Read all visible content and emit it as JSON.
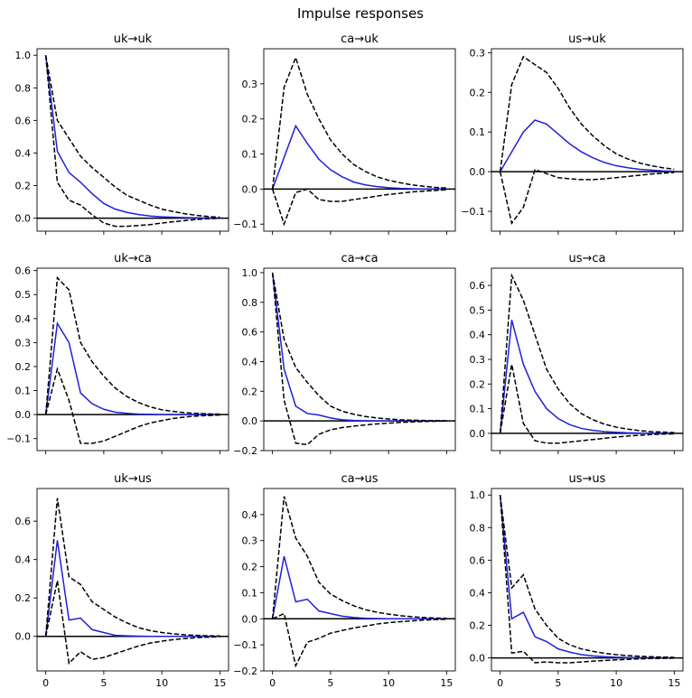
{
  "figure": {
    "title": "Impulse responses"
  },
  "colors": {
    "response": "#1f1fdd",
    "band": "#000000",
    "axis": "#000000",
    "zero": "#000000"
  },
  "chart_data": [
    {
      "type": "line",
      "title": "uk→uk",
      "x": [
        0,
        1,
        2,
        3,
        4,
        5,
        6,
        7,
        8,
        9,
        10,
        11,
        12,
        13,
        14,
        15
      ],
      "ylim": [
        -0.08,
        1.04
      ],
      "yticks": [
        0.0,
        0.2,
        0.4,
        0.6,
        0.8,
        1.0
      ],
      "ytick_labels": [
        "0.0",
        "0.2",
        "0.4",
        "0.6",
        "0.8",
        "1.0"
      ],
      "series": [
        {
          "role": "response",
          "values": [
            1.0,
            0.41,
            0.28,
            0.22,
            0.15,
            0.09,
            0.055,
            0.035,
            0.022,
            0.013,
            0.008,
            0.005,
            0.003,
            0.002,
            0.001,
            0.0
          ]
        },
        {
          "role": "upper",
          "values": [
            1.0,
            0.6,
            0.49,
            0.38,
            0.31,
            0.25,
            0.19,
            0.14,
            0.11,
            0.08,
            0.055,
            0.04,
            0.027,
            0.017,
            0.01,
            0.005
          ]
        },
        {
          "role": "lower",
          "values": [
            1.0,
            0.22,
            0.11,
            0.08,
            0.02,
            -0.03,
            -0.05,
            -0.05,
            -0.045,
            -0.04,
            -0.03,
            -0.022,
            -0.015,
            -0.008,
            -0.004,
            -0.001
          ]
        }
      ]
    },
    {
      "type": "line",
      "title": "ca→uk",
      "x": [
        0,
        1,
        2,
        3,
        4,
        5,
        6,
        7,
        8,
        9,
        10,
        11,
        12,
        13,
        14,
        15
      ],
      "ylim": [
        -0.12,
        0.4
      ],
      "yticks": [
        -0.1,
        0.0,
        0.1,
        0.2,
        0.3
      ],
      "ytick_labels": [
        "−0.1",
        "0.0",
        "0.1",
        "0.2",
        "0.3"
      ],
      "series": [
        {
          "role": "response",
          "values": [
            0.0,
            0.09,
            0.18,
            0.13,
            0.085,
            0.055,
            0.035,
            0.02,
            0.012,
            0.007,
            0.004,
            0.002,
            0.001,
            0.0,
            0.0,
            0.0
          ]
        },
        {
          "role": "upper",
          "values": [
            0.0,
            0.29,
            0.375,
            0.27,
            0.2,
            0.14,
            0.1,
            0.07,
            0.05,
            0.035,
            0.025,
            0.018,
            0.012,
            0.008,
            0.005,
            0.003
          ]
        },
        {
          "role": "lower",
          "values": [
            0.0,
            -0.1,
            -0.01,
            0.0,
            -0.03,
            -0.035,
            -0.035,
            -0.03,
            -0.025,
            -0.02,
            -0.015,
            -0.012,
            -0.008,
            -0.006,
            -0.004,
            -0.002
          ]
        }
      ]
    },
    {
      "type": "line",
      "title": "us→uk",
      "x": [
        0,
        1,
        2,
        3,
        4,
        5,
        6,
        7,
        8,
        9,
        10,
        11,
        12,
        13,
        14,
        15
      ],
      "ylim": [
        -0.15,
        0.31
      ],
      "yticks": [
        -0.1,
        0.0,
        0.1,
        0.2,
        0.3
      ],
      "ytick_labels": [
        "−0.1",
        "0.0",
        "0.1",
        "0.2",
        "0.3"
      ],
      "series": [
        {
          "role": "response",
          "values": [
            0.0,
            0.05,
            0.1,
            0.13,
            0.12,
            0.095,
            0.07,
            0.05,
            0.035,
            0.023,
            0.015,
            0.01,
            0.006,
            0.004,
            0.002,
            0.001
          ]
        },
        {
          "role": "upper",
          "values": [
            0.0,
            0.22,
            0.29,
            0.27,
            0.25,
            0.21,
            0.16,
            0.12,
            0.09,
            0.065,
            0.045,
            0.032,
            0.022,
            0.015,
            0.01,
            0.006
          ]
        },
        {
          "role": "lower",
          "values": [
            0.0,
            -0.13,
            -0.09,
            0.005,
            -0.005,
            -0.015,
            -0.018,
            -0.02,
            -0.02,
            -0.018,
            -0.015,
            -0.012,
            -0.009,
            -0.006,
            -0.004,
            -0.002
          ]
        }
      ]
    },
    {
      "type": "line",
      "title": "uk→ca",
      "x": [
        0,
        1,
        2,
        3,
        4,
        5,
        6,
        7,
        8,
        9,
        10,
        11,
        12,
        13,
        14,
        15
      ],
      "ylim": [
        -0.15,
        0.61
      ],
      "yticks": [
        -0.1,
        0.0,
        0.1,
        0.2,
        0.3,
        0.4,
        0.5,
        0.6
      ],
      "ytick_labels": [
        "−0.1",
        "0.0",
        "0.1",
        "0.2",
        "0.3",
        "0.4",
        "0.5",
        "0.6"
      ],
      "series": [
        {
          "role": "response",
          "values": [
            0.0,
            0.38,
            0.3,
            0.09,
            0.045,
            0.022,
            0.01,
            0.005,
            0.002,
            0.001,
            0.0,
            0.0,
            0.0,
            0.0,
            0.0,
            0.0
          ]
        },
        {
          "role": "upper",
          "values": [
            0.0,
            0.57,
            0.52,
            0.3,
            0.22,
            0.16,
            0.11,
            0.075,
            0.05,
            0.032,
            0.02,
            0.013,
            0.008,
            0.005,
            0.003,
            0.002
          ]
        },
        {
          "role": "lower",
          "values": [
            0.0,
            0.19,
            0.06,
            -0.12,
            -0.12,
            -0.11,
            -0.09,
            -0.07,
            -0.05,
            -0.035,
            -0.025,
            -0.016,
            -0.01,
            -0.006,
            -0.004,
            -0.002
          ]
        }
      ]
    },
    {
      "type": "line",
      "title": "ca→ca",
      "x": [
        0,
        1,
        2,
        3,
        4,
        5,
        6,
        7,
        8,
        9,
        10,
        11,
        12,
        13,
        14,
        15
      ],
      "ylim": [
        -0.2,
        1.03
      ],
      "yticks": [
        -0.2,
        0.0,
        0.2,
        0.4,
        0.6,
        0.8,
        1.0
      ],
      "ytick_labels": [
        "−0.2",
        "0.0",
        "0.2",
        "0.4",
        "0.6",
        "0.8",
        "1.0"
      ],
      "series": [
        {
          "role": "response",
          "values": [
            1.0,
            0.35,
            0.1,
            0.05,
            0.04,
            0.02,
            0.008,
            0.003,
            0.001,
            0.0,
            0.0,
            0.0,
            0.0,
            0.0,
            0.0,
            0.0
          ]
        },
        {
          "role": "upper",
          "values": [
            1.0,
            0.55,
            0.36,
            0.26,
            0.17,
            0.1,
            0.065,
            0.045,
            0.03,
            0.02,
            0.013,
            0.008,
            0.005,
            0.003,
            0.002,
            0.001
          ]
        },
        {
          "role": "lower",
          "values": [
            1.0,
            0.14,
            -0.15,
            -0.16,
            -0.09,
            -0.06,
            -0.045,
            -0.035,
            -0.027,
            -0.02,
            -0.015,
            -0.01,
            -0.007,
            -0.004,
            -0.002,
            -0.001
          ]
        }
      ]
    },
    {
      "type": "line",
      "title": "us→ca",
      "x": [
        0,
        1,
        2,
        3,
        4,
        5,
        6,
        7,
        8,
        9,
        10,
        11,
        12,
        13,
        14,
        15
      ],
      "ylim": [
        -0.07,
        0.67
      ],
      "yticks": [
        0.0,
        0.1,
        0.2,
        0.3,
        0.4,
        0.5,
        0.6
      ],
      "ytick_labels": [
        "0.0",
        "0.1",
        "0.2",
        "0.3",
        "0.4",
        "0.5",
        "0.6"
      ],
      "series": [
        {
          "role": "response",
          "values": [
            0.0,
            0.46,
            0.28,
            0.17,
            0.1,
            0.06,
            0.035,
            0.02,
            0.012,
            0.007,
            0.004,
            0.002,
            0.001,
            0.0,
            0.0,
            0.0
          ]
        },
        {
          "role": "upper",
          "values": [
            0.0,
            0.64,
            0.54,
            0.4,
            0.26,
            0.18,
            0.12,
            0.08,
            0.055,
            0.037,
            0.025,
            0.017,
            0.011,
            0.007,
            0.005,
            0.003
          ]
        },
        {
          "role": "lower",
          "values": [
            0.0,
            0.28,
            0.04,
            -0.03,
            -0.04,
            -0.04,
            -0.035,
            -0.03,
            -0.025,
            -0.02,
            -0.015,
            -0.011,
            -0.008,
            -0.005,
            -0.003,
            -0.002
          ]
        }
      ]
    },
    {
      "type": "line",
      "title": "uk→us",
      "x": [
        0,
        1,
        2,
        3,
        4,
        5,
        6,
        7,
        8,
        9,
        10,
        11,
        12,
        13,
        14,
        15
      ],
      "ylim": [
        -0.18,
        0.77
      ],
      "yticks": [
        0.0,
        0.2,
        0.4,
        0.6
      ],
      "ytick_labels": [
        "0.0",
        "0.2",
        "0.4",
        "0.6"
      ],
      "series": [
        {
          "role": "response",
          "values": [
            0.0,
            0.5,
            0.085,
            0.095,
            0.035,
            0.02,
            0.005,
            0.003,
            0.001,
            0.0,
            0.0,
            0.0,
            0.0,
            0.0,
            0.0,
            0.0
          ]
        },
        {
          "role": "upper",
          "values": [
            0.0,
            0.72,
            0.31,
            0.27,
            0.18,
            0.14,
            0.1,
            0.07,
            0.045,
            0.03,
            0.02,
            0.013,
            0.008,
            0.005,
            0.003,
            0.002
          ]
        },
        {
          "role": "lower",
          "values": [
            0.0,
            0.29,
            -0.14,
            -0.08,
            -0.12,
            -0.11,
            -0.09,
            -0.07,
            -0.05,
            -0.035,
            -0.025,
            -0.017,
            -0.011,
            -0.007,
            -0.004,
            -0.002
          ]
        }
      ]
    },
    {
      "type": "line",
      "title": "ca→us",
      "x": [
        0,
        1,
        2,
        3,
        4,
        5,
        6,
        7,
        8,
        9,
        10,
        11,
        12,
        13,
        14,
        15
      ],
      "ylim": [
        -0.2,
        0.5
      ],
      "yticks": [
        -0.2,
        -0.1,
        0.0,
        0.1,
        0.2,
        0.3,
        0.4
      ],
      "ytick_labels": [
        "−0.2",
        "−0.1",
        "0.0",
        "0.1",
        "0.2",
        "0.3",
        "0.4"
      ],
      "series": [
        {
          "role": "response",
          "values": [
            0.0,
            0.24,
            0.065,
            0.075,
            0.03,
            0.02,
            0.01,
            0.005,
            0.002,
            0.001,
            0.0,
            0.0,
            0.0,
            0.0,
            0.0,
            0.0
          ]
        },
        {
          "role": "upper",
          "values": [
            0.0,
            0.47,
            0.31,
            0.24,
            0.14,
            0.095,
            0.07,
            0.05,
            0.035,
            0.025,
            0.018,
            0.012,
            0.008,
            0.005,
            0.003,
            0.002
          ]
        },
        {
          "role": "lower",
          "values": [
            0.0,
            0.02,
            -0.18,
            -0.09,
            -0.075,
            -0.055,
            -0.045,
            -0.035,
            -0.028,
            -0.02,
            -0.015,
            -0.011,
            -0.008,
            -0.005,
            -0.003,
            -0.002
          ]
        }
      ]
    },
    {
      "type": "line",
      "title": "us→us",
      "x": [
        0,
        1,
        2,
        3,
        4,
        5,
        6,
        7,
        8,
        9,
        10,
        11,
        12,
        13,
        14,
        15
      ],
      "ylim": [
        -0.08,
        1.04
      ],
      "yticks": [
        0.0,
        0.2,
        0.4,
        0.6,
        0.8,
        1.0
      ],
      "ytick_labels": [
        "0.0",
        "0.2",
        "0.4",
        "0.6",
        "0.8",
        "1.0"
      ],
      "series": [
        {
          "role": "response",
          "values": [
            1.0,
            0.24,
            0.28,
            0.13,
            0.1,
            0.055,
            0.035,
            0.02,
            0.012,
            0.007,
            0.004,
            0.002,
            0.001,
            0.0,
            0.0,
            0.0
          ]
        },
        {
          "role": "upper",
          "values": [
            1.0,
            0.43,
            0.51,
            0.3,
            0.2,
            0.12,
            0.08,
            0.055,
            0.04,
            0.028,
            0.02,
            0.014,
            0.01,
            0.007,
            0.005,
            0.003
          ]
        },
        {
          "role": "lower",
          "values": [
            1.0,
            0.03,
            0.04,
            -0.03,
            -0.025,
            -0.03,
            -0.03,
            -0.025,
            -0.02,
            -0.016,
            -0.012,
            -0.009,
            -0.006,
            -0.004,
            -0.003,
            -0.002
          ]
        }
      ]
    }
  ],
  "xaxis": {
    "xlim": [
      -0.75,
      15.75
    ],
    "xticks": [
      0,
      5,
      10,
      15
    ],
    "xtick_labels": [
      "0",
      "5",
      "10",
      "15"
    ]
  }
}
